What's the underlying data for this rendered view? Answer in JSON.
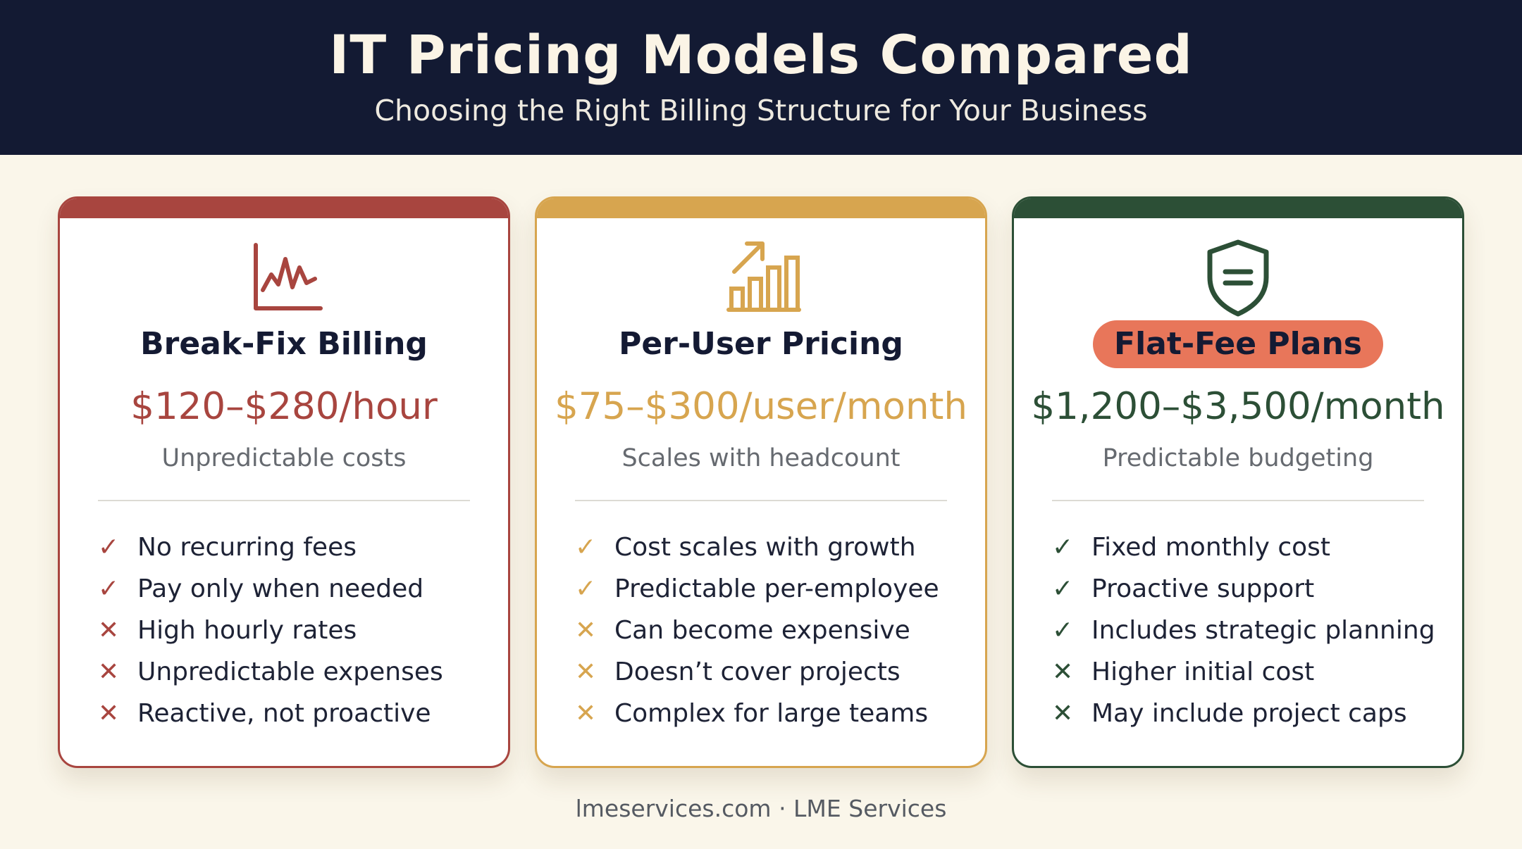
{
  "header": {
    "title": "IT Pricing Models Compared",
    "subtitle": "Choosing the Right Billing Structure for Your Business"
  },
  "colors": {
    "header_bg": "#131a33",
    "break_fix": "#a8453f",
    "per_user": "#d7a54f",
    "flat_fee": "#2c4f36",
    "flat_fee_pill": "#e8765a",
    "page_bg": "#faf6ea"
  },
  "cards": [
    {
      "icon": "line-chart-icon",
      "name": "Break-Fix Billing",
      "price": "$120–$280/hour",
      "tagline": "Unpredictable costs",
      "features": [
        {
          "mark": "check",
          "text": "No recurring fees"
        },
        {
          "mark": "check",
          "text": "Pay only when needed"
        },
        {
          "mark": "cross",
          "text": "High hourly rates"
        },
        {
          "mark": "cross",
          "text": "Unpredictable expenses"
        },
        {
          "mark": "cross",
          "text": "Reactive, not proactive"
        }
      ]
    },
    {
      "icon": "bar-chart-growth-icon",
      "name": "Per-User Pricing",
      "price": "$75–$300/user/month",
      "tagline": "Scales with headcount",
      "features": [
        {
          "mark": "check",
          "text": "Cost scales with growth"
        },
        {
          "mark": "check",
          "text": "Predictable per-employee"
        },
        {
          "mark": "cross",
          "text": "Can become expensive"
        },
        {
          "mark": "cross",
          "text": "Doesn’t cover projects"
        },
        {
          "mark": "cross",
          "text": "Complex for large teams"
        }
      ]
    },
    {
      "icon": "shield-icon",
      "name": "Flat-Fee Plans",
      "price": "$1,200–$3,500/month",
      "tagline": "Predictable budgeting",
      "features": [
        {
          "mark": "check",
          "text": "Fixed monthly cost"
        },
        {
          "mark": "check",
          "text": "Proactive support"
        },
        {
          "mark": "check",
          "text": "Includes strategic planning"
        },
        {
          "mark": "cross",
          "text": "Higher initial cost"
        },
        {
          "mark": "cross",
          "text": "May include project caps"
        }
      ]
    }
  ],
  "footer": "lmeservices.com · LME Services"
}
